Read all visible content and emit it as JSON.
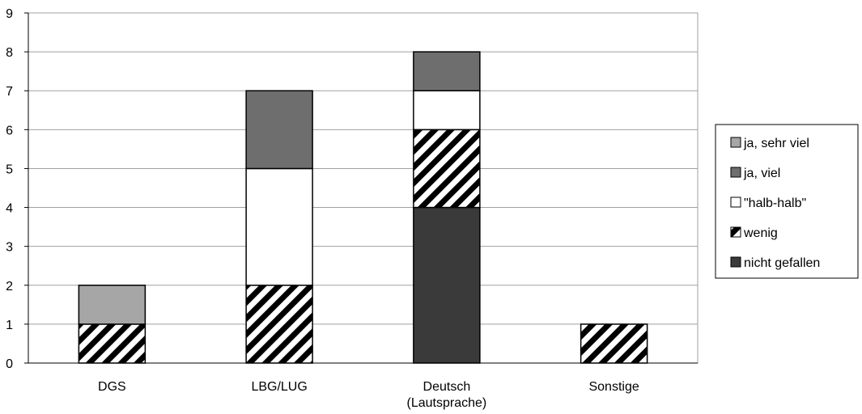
{
  "chart_data": {
    "type": "bar",
    "stacked": true,
    "title": "",
    "xlabel": "",
    "ylabel": "",
    "ylim": [
      0,
      9
    ],
    "yticks": [
      "0",
      "1",
      "2",
      "3",
      "4",
      "5",
      "6",
      "7",
      "8",
      "9"
    ],
    "grid": true,
    "legend_position": "right",
    "categories": [
      {
        "line1": "DGS",
        "line2": ""
      },
      {
        "line1": "LBG/LUG",
        "line2": ""
      },
      {
        "line1": "Deutsch",
        "line2": "(Lautsprache)"
      },
      {
        "line1": "Sonstige",
        "line2": ""
      }
    ],
    "series": [
      {
        "name": "nicht gefallen",
        "values": [
          0,
          0,
          4,
          0
        ],
        "fill": "#3a3a3a",
        "pattern": "solid"
      },
      {
        "name": "wenig",
        "values": [
          1,
          2,
          2,
          1
        ],
        "fill": "#ffffff",
        "pattern": "hatch"
      },
      {
        "name": "\"halb-halb\"",
        "values": [
          0,
          3,
          1,
          0
        ],
        "fill": "#ffffff",
        "pattern": "solid"
      },
      {
        "name": "ja, viel",
        "values": [
          0,
          2,
          1,
          0
        ],
        "fill": "#6e6e6e",
        "pattern": "solid"
      },
      {
        "name": "ja, sehr viel",
        "values": [
          1,
          0,
          0,
          0
        ],
        "fill": "#a6a6a6",
        "pattern": "solid"
      }
    ],
    "legend_order": [
      "ja, sehr viel",
      "ja, viel",
      "\"halb-halb\"",
      "wenig",
      "nicht gefallen"
    ]
  }
}
